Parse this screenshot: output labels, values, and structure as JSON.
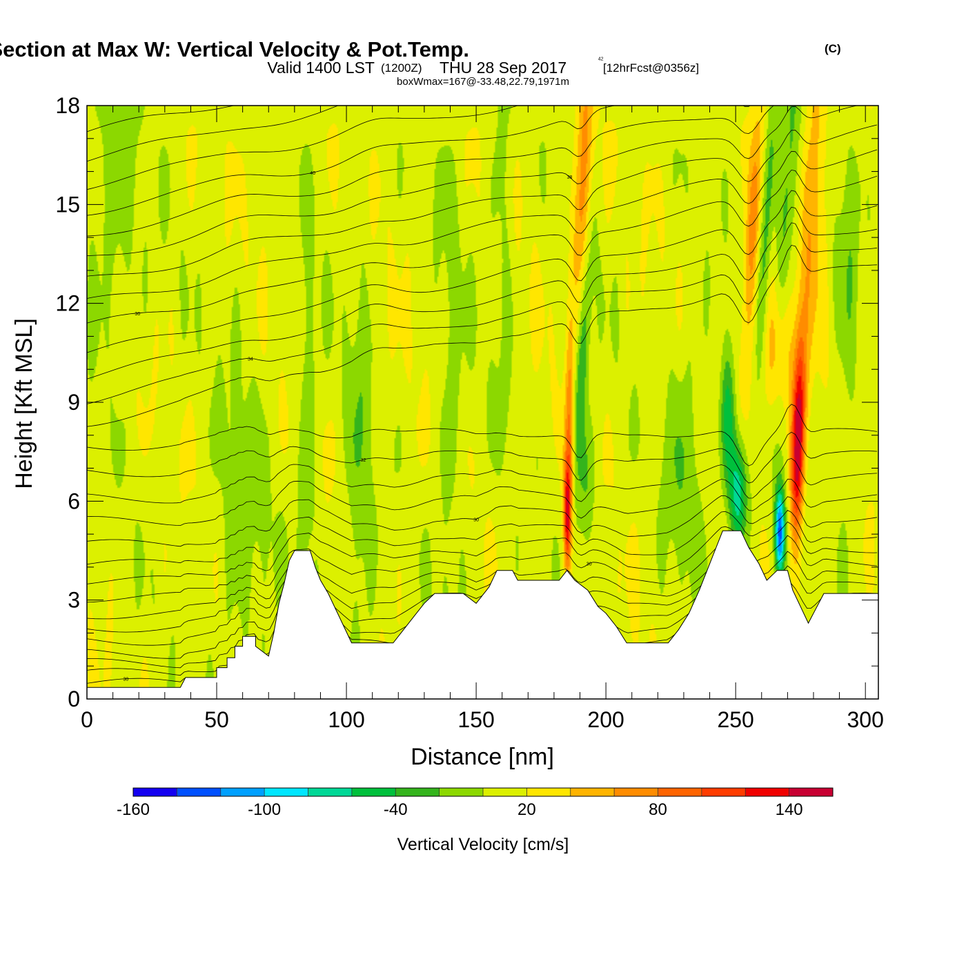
{
  "chart_data": {
    "type": "heatmap",
    "title": "Wind-Parallel Section at Max W: Vertical Velocity & Pot.Temp.",
    "title_mark": "(C)",
    "subtitle": {
      "valid": "Valid 1400 LST",
      "utc": "(1200Z)",
      "date": "THU 28 Sep 2017",
      "forecast": "[12hrFcst@0356z]"
    },
    "box_info": "boxWmax=167@-33.48,22.79,1971m",
    "xlabel": "Distance [nm]",
    "ylabel": "Height [Kft MSL]",
    "xlim": [
      0,
      305
    ],
    "ylim": [
      0,
      18
    ],
    "x_ticks": [
      0,
      50,
      100,
      150,
      200,
      250,
      300
    ],
    "y_ticks": [
      0,
      3,
      6,
      9,
      12,
      15,
      18
    ],
    "colorbar": {
      "label": "Vertical Velocity [cm/s]",
      "boundaries": [
        -160,
        -140,
        -120,
        -100,
        -80,
        -60,
        -40,
        -20,
        0,
        20,
        40,
        60,
        80,
        100,
        120,
        140,
        160
      ],
      "colors": [
        "#1400f0",
        "#0050ff",
        "#00a0ff",
        "#00e6ff",
        "#00d896",
        "#00c03c",
        "#34b41c",
        "#8cd800",
        "#dcf000",
        "#ffe600",
        "#ffb400",
        "#ff8c00",
        "#ff6400",
        "#ff3c00",
        "#f00000",
        "#c80032"
      ],
      "tick_labels": [
        "-160",
        "-100",
        "-40",
        "20",
        "80",
        "140"
      ],
      "tick_values": [
        -160,
        -100,
        -40,
        20,
        80,
        140
      ]
    },
    "terrain": [
      [
        0,
        0.35
      ],
      [
        36,
        0.35
      ],
      [
        38,
        0.65
      ],
      [
        50,
        0.65
      ],
      [
        50,
        0.95
      ],
      [
        54,
        0.95
      ],
      [
        54,
        1.25
      ],
      [
        57,
        1.25
      ],
      [
        57,
        1.6
      ],
      [
        60,
        1.6
      ],
      [
        60,
        1.9
      ],
      [
        65,
        1.9
      ],
      [
        65,
        1.6
      ],
      [
        70,
        1.3
      ],
      [
        72,
        2
      ],
      [
        74,
        2.9
      ],
      [
        76,
        3.5
      ],
      [
        78,
        4.2
      ],
      [
        80,
        4.5
      ],
      [
        86,
        4.5
      ],
      [
        88,
        4
      ],
      [
        90,
        3.6
      ],
      [
        93,
        3.2
      ],
      [
        96,
        2.7
      ],
      [
        99,
        2.2
      ],
      [
        102,
        1.7
      ],
      [
        118,
        1.7
      ],
      [
        122,
        2.1
      ],
      [
        126,
        2.5
      ],
      [
        130,
        2.9
      ],
      [
        134,
        3.2
      ],
      [
        145,
        3.2
      ],
      [
        150,
        2.9
      ],
      [
        155,
        3.4
      ],
      [
        158,
        3.9
      ],
      [
        164,
        3.9
      ],
      [
        166,
        3.6
      ],
      [
        182,
        3.6
      ],
      [
        185,
        3.9
      ],
      [
        188,
        3.6
      ],
      [
        193,
        3.3
      ],
      [
        197,
        2.8
      ],
      [
        200,
        2.6
      ],
      [
        204,
        2.2
      ],
      [
        208,
        1.7
      ],
      [
        224,
        1.7
      ],
      [
        228,
        2.1
      ],
      [
        232,
        2.6
      ],
      [
        236,
        3.3
      ],
      [
        239,
        3.9
      ],
      [
        242,
        4.5
      ],
      [
        245,
        5.1
      ],
      [
        252,
        5.1
      ],
      [
        255,
        4.6
      ],
      [
        259,
        4.1
      ],
      [
        262,
        3.6
      ],
      [
        266,
        3.9
      ],
      [
        270,
        3.9
      ],
      [
        272,
        3.3
      ],
      [
        275,
        2.8
      ],
      [
        278,
        2.3
      ],
      [
        280,
        2.6
      ],
      [
        284,
        3.2
      ],
      [
        305,
        3.2
      ]
    ],
    "w_features": [
      {
        "x": 186,
        "z": 7.5,
        "sx": 1.2,
        "sz": 2.5,
        "w": 65,
        "tilt": 0
      },
      {
        "x": 185,
        "z": 5.5,
        "sx": 1.0,
        "sz": 1.2,
        "w": 110,
        "tilt": 0
      },
      {
        "x": 191,
        "z": 15.5,
        "sx": 2.2,
        "sz": 2.5,
        "w": 70,
        "tilt": 0.5
      },
      {
        "x": 191,
        "z": 10.5,
        "sx": 1.8,
        "sz": 2.5,
        "w": -50,
        "tilt": 0.8
      },
      {
        "x": 192,
        "z": 6.5,
        "sx": 3.0,
        "sz": 1.6,
        "w": -35,
        "tilt": 0
      },
      {
        "x": 251,
        "z": 6.2,
        "sx": 2.5,
        "sz": 1.2,
        "w": -90,
        "tilt": 0
      },
      {
        "x": 247,
        "z": 8.5,
        "sx": 2.0,
        "sz": 1.5,
        "w": -60,
        "tilt": 0
      },
      {
        "x": 267,
        "z": 5.0,
        "sx": 1.4,
        "sz": 1.0,
        "w": -150,
        "tilt": 0
      },
      {
        "x": 274,
        "z": 7.8,
        "sx": 1.8,
        "sz": 2.2,
        "w": 150,
        "tilt": 0.3
      },
      {
        "x": 266,
        "z": 10.5,
        "sx": 5.0,
        "sz": 1.5,
        "w": 40,
        "tilt": 0.8
      },
      {
        "x": 256,
        "z": 13.5,
        "sx": 2.0,
        "sz": 3.0,
        "w": 55,
        "tilt": 0.7
      },
      {
        "x": 262,
        "z": 14.5,
        "sx": 1.8,
        "sz": 4.0,
        "w": -40,
        "tilt": 0.7
      },
      {
        "x": 270,
        "z": 15.0,
        "sx": 2.5,
        "sz": 3.0,
        "w": -45,
        "tilt": 0.7
      },
      {
        "x": 280,
        "z": 15.5,
        "sx": 3.0,
        "sz": 3.0,
        "w": 50,
        "tilt": 0.4
      },
      {
        "x": 293,
        "z": 12.0,
        "sx": 3.0,
        "sz": 4.0,
        "w": -25,
        "tilt": 0
      },
      {
        "x": 105,
        "z": 6.0,
        "sx": 4.0,
        "sz": 6.0,
        "w": -25,
        "tilt": 0
      },
      {
        "x": 140,
        "z": 8.0,
        "sx": 4.0,
        "sz": 6.0,
        "w": -20,
        "tilt": 0
      },
      {
        "x": 85,
        "z": 7.0,
        "sx": 3.0,
        "sz": 5.0,
        "w": -25,
        "tilt": 0
      },
      {
        "x": 60,
        "z": 5.0,
        "sx": 8.0,
        "sz": 4.0,
        "w": -20,
        "tilt": 0
      },
      {
        "x": 10,
        "z": 15.0,
        "sx": 8.0,
        "sz": 3.0,
        "w": -25,
        "tilt": 0
      },
      {
        "x": 230,
        "z": 7.5,
        "sx": 6.0,
        "sz": 3.0,
        "w": -25,
        "tilt": 0
      },
      {
        "x": 160,
        "z": 15.0,
        "sx": 3.0,
        "sz": 5.0,
        "w": -20,
        "tilt": 0
      }
    ],
    "isentropes": [
      {
        "label": "30",
        "z": 0.5
      },
      {
        "label": "",
        "z": 0.8
      },
      {
        "label": "",
        "z": 1.1
      },
      {
        "label": "",
        "z": 1.4
      },
      {
        "label": "",
        "z": 1.8
      },
      {
        "label": "",
        "z": 2.2
      },
      {
        "label": "",
        "z": 2.6
      },
      {
        "label": "30",
        "z": 3.1
      },
      {
        "label": "",
        "z": 3.6
      },
      {
        "label": "",
        "z": 4.1
      },
      {
        "label": "30",
        "z": 4.7
      },
      {
        "label": "",
        "z": 5.4
      },
      {
        "label": "",
        "z": 6.1
      },
      {
        "label": "32",
        "z": 6.9
      },
      {
        "label": "",
        "z": 7.7
      },
      {
        "label": "",
        "z": 8.4
      },
      {
        "label": "34",
        "z": 9.1
      },
      {
        "label": "",
        "z": 9.8
      },
      {
        "label": "",
        "z": 10.5
      },
      {
        "label": "36",
        "z": 11.3
      },
      {
        "label": "",
        "z": 12.0
      },
      {
        "label": "",
        "z": 12.7
      },
      {
        "label": "38",
        "z": 13.4
      },
      {
        "label": "",
        "z": 14.1
      },
      {
        "label": "40",
        "z": 14.8
      },
      {
        "label": "",
        "z": 15.6
      },
      {
        "label": "42",
        "z": 16.4
      },
      {
        "label": "",
        "z": 17.2
      }
    ]
  }
}
